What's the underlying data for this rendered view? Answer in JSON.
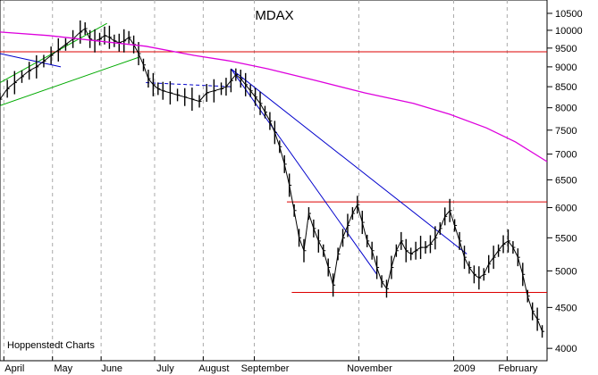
{
  "chart_data": {
    "type": "line",
    "title": "MDAX",
    "credit": "Hoppenstedt Charts",
    "y_axis": {
      "scale": "log",
      "side": "right",
      "ticks": [
        4000,
        4500,
        5000,
        5500,
        6000,
        6500,
        7000,
        7500,
        8000,
        8500,
        9000,
        9500,
        10000,
        10500
      ],
      "ylim": [
        3900,
        10800
      ]
    },
    "x_axis": {
      "labels": [
        {
          "text": "April",
          "t": 6
        },
        {
          "text": "May",
          "t": 26
        },
        {
          "text": "June",
          "t": 46
        },
        {
          "text": "July",
          "t": 68
        },
        {
          "text": "August",
          "t": 88
        },
        {
          "text": "September",
          "t": 109
        },
        {
          "text": "November",
          "t": 152
        },
        {
          "text": "2009",
          "t": 191
        },
        {
          "text": "February",
          "t": 213
        }
      ],
      "xlim": [
        0,
        225
      ]
    },
    "grid": "vertical-dashed",
    "series": [
      {
        "kind": "ohlc-bars",
        "color": "#000000",
        "values": [
          [
            0,
            8200
          ],
          [
            3,
            8450
          ],
          [
            6,
            8600
          ],
          [
            9,
            8750
          ],
          [
            12,
            8900
          ],
          [
            15,
            9000
          ],
          [
            18,
            9150
          ],
          [
            21,
            9300
          ],
          [
            24,
            9450
          ],
          [
            27,
            9600
          ],
          [
            30,
            9750
          ],
          [
            33,
            9950
          ],
          [
            35,
            10050
          ],
          [
            37,
            9750
          ],
          [
            39,
            9700
          ],
          [
            41,
            9750
          ],
          [
            43,
            9850
          ],
          [
            45,
            9800
          ],
          [
            47,
            9700
          ],
          [
            49,
            9650
          ],
          [
            51,
            9700
          ],
          [
            53,
            9800
          ],
          [
            55,
            9600
          ],
          [
            57,
            9350
          ],
          [
            59,
            9050
          ],
          [
            61,
            8700
          ],
          [
            63,
            8550
          ],
          [
            65,
            8450
          ],
          [
            67,
            8400
          ],
          [
            70,
            8350
          ],
          [
            73,
            8300
          ],
          [
            76,
            8250
          ],
          [
            79,
            8200
          ],
          [
            82,
            8150
          ],
          [
            85,
            8350
          ],
          [
            88,
            8400
          ],
          [
            91,
            8450
          ],
          [
            93,
            8500
          ],
          [
            95,
            8650
          ],
          [
            97,
            8800
          ],
          [
            99,
            8700
          ],
          [
            101,
            8550
          ],
          [
            103,
            8400
          ],
          [
            105,
            8250
          ],
          [
            107,
            8100
          ],
          [
            109,
            7900
          ],
          [
            111,
            7700
          ],
          [
            113,
            7450
          ],
          [
            115,
            7150
          ],
          [
            117,
            6800
          ],
          [
            119,
            6400
          ],
          [
            121,
            5950
          ],
          [
            123,
            5500
          ],
          [
            125,
            5300
          ],
          [
            127,
            5900
          ],
          [
            129,
            5650
          ],
          [
            131,
            5450
          ],
          [
            133,
            5300
          ],
          [
            135,
            5050
          ],
          [
            137,
            4800
          ],
          [
            139,
            5250
          ],
          [
            141,
            5500
          ],
          [
            143,
            5700
          ],
          [
            145,
            5900
          ],
          [
            147,
            6050
          ],
          [
            149,
            5750
          ],
          [
            151,
            5450
          ],
          [
            153,
            5300
          ],
          [
            155,
            5050
          ],
          [
            157,
            4850
          ],
          [
            159,
            4750
          ],
          [
            161,
            5050
          ],
          [
            163,
            5300
          ],
          [
            165,
            5450
          ],
          [
            167,
            5300
          ],
          [
            169,
            5250
          ],
          [
            171,
            5300
          ],
          [
            173,
            5350
          ],
          [
            175,
            5350
          ],
          [
            177,
            5400
          ],
          [
            179,
            5500
          ],
          [
            181,
            5650
          ],
          [
            183,
            5850
          ],
          [
            185,
            5950
          ],
          [
            187,
            5700
          ],
          [
            189,
            5450
          ],
          [
            191,
            5200
          ],
          [
            193,
            5050
          ],
          [
            195,
            4950
          ],
          [
            197,
            4900
          ],
          [
            199,
            4950
          ],
          [
            201,
            5100
          ],
          [
            203,
            5200
          ],
          [
            205,
            5300
          ],
          [
            207,
            5400
          ],
          [
            209,
            5450
          ],
          [
            211,
            5350
          ],
          [
            213,
            5200
          ],
          [
            215,
            4950
          ],
          [
            217,
            4650
          ],
          [
            219,
            4450
          ],
          [
            221,
            4350
          ],
          [
            223,
            4200
          ]
        ]
      },
      {
        "kind": "moving-average",
        "color": "#dd00dd",
        "values": [
          [
            0,
            9950
          ],
          [
            20,
            9850
          ],
          [
            40,
            9700
          ],
          [
            60,
            9550
          ],
          [
            80,
            9300
          ],
          [
            95,
            9150
          ],
          [
            110,
            8950
          ],
          [
            130,
            8650
          ],
          [
            150,
            8350
          ],
          [
            170,
            8100
          ],
          [
            185,
            7850
          ],
          [
            200,
            7550
          ],
          [
            212,
            7250
          ],
          [
            225,
            6850
          ]
        ]
      }
    ],
    "trendlines": [
      {
        "color": "#dd0000",
        "points": [
          [
            0,
            9400
          ],
          [
            225,
            9400
          ]
        ]
      },
      {
        "color": "#dd0000",
        "points": [
          [
            118,
            6100
          ],
          [
            225,
            6100
          ]
        ]
      },
      {
        "color": "#dd0000",
        "points": [
          [
            120,
            4700
          ],
          [
            225,
            4700
          ]
        ]
      },
      {
        "color": "#00aa00",
        "points": [
          [
            0,
            8050
          ],
          [
            57,
            9250
          ]
        ]
      },
      {
        "color": "#00aa00",
        "points": [
          [
            0,
            8600
          ],
          [
            44,
            10200
          ]
        ]
      },
      {
        "color": "#0000cc",
        "points": [
          [
            0,
            9350
          ],
          [
            25,
            9000
          ]
        ]
      },
      {
        "color": "#0000cc",
        "points": [
          [
            95,
            8950
          ],
          [
            155,
            4950
          ]
        ]
      },
      {
        "color": "#0000cc",
        "points": [
          [
            95,
            8950
          ],
          [
            192,
            5250
          ]
        ]
      },
      {
        "color": "#0000cc",
        "dashed": true,
        "points": [
          [
            60,
            8600
          ],
          [
            95,
            8500
          ]
        ]
      }
    ]
  }
}
